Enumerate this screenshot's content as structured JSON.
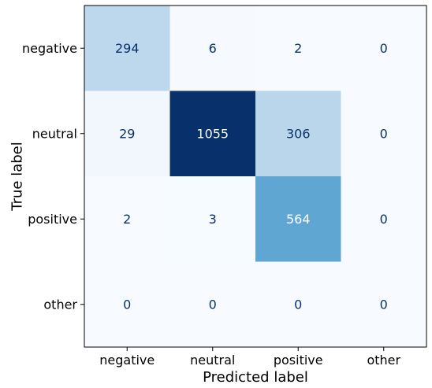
{
  "chart_data": {
    "type": "heatmap",
    "title": "",
    "xlabel": "Predicted label",
    "ylabel": "True label",
    "x_categories": [
      "negative",
      "neutral",
      "positive",
      "other"
    ],
    "y_categories": [
      "negative",
      "neutral",
      "positive",
      "other"
    ],
    "values": [
      [
        294,
        6,
        2,
        0
      ],
      [
        29,
        1055,
        306,
        0
      ],
      [
        2,
        3,
        564,
        0
      ],
      [
        0,
        0,
        0,
        0
      ]
    ],
    "colormap": "Blues",
    "value_range": [
      0,
      1055
    ],
    "colorbar": false,
    "grid": false,
    "colors": {
      "low": "#f7fbff",
      "high": "#08306b",
      "text_dark": "#08306b",
      "text_light": "#ffffff"
    }
  }
}
